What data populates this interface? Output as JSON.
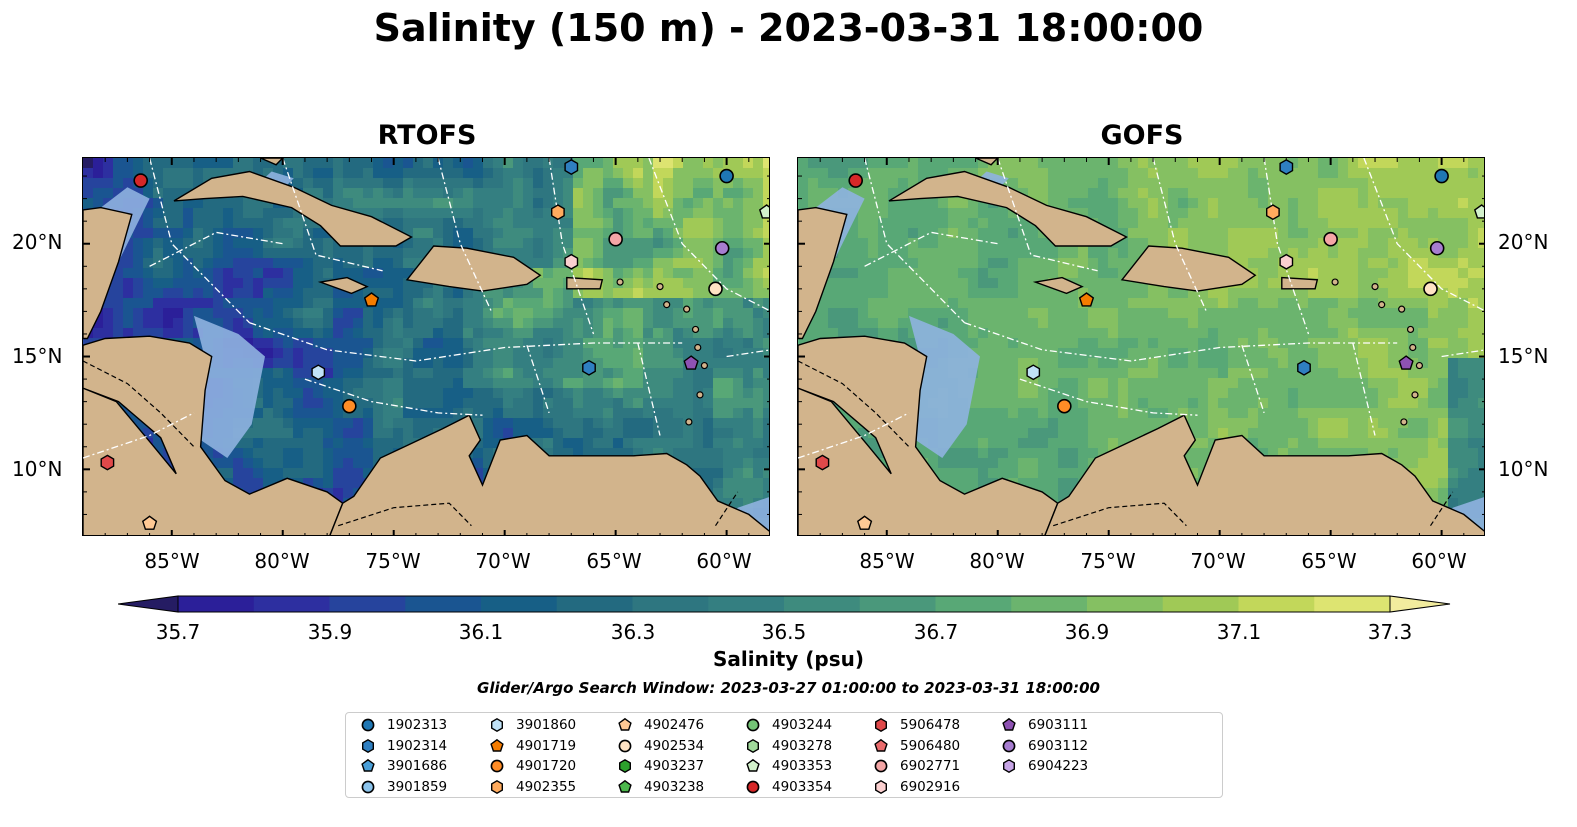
{
  "title": "Salinity (150 m) - 2023-03-31 18:00:00",
  "panels": [
    {
      "title": "RTOFS",
      "palette": "low"
    },
    {
      "title": "GOFS",
      "palette": "high"
    }
  ],
  "lat_ticks": [
    "20°N",
    "15°N",
    "10°N"
  ],
  "lon_ticks": [
    "85°W",
    "80°W",
    "75°W",
    "70°W",
    "65°W",
    "60°W"
  ],
  "colorbar": {
    "label": "Salinity (psu)",
    "min": 35.6,
    "max": 37.4,
    "ticks": [
      "35.7",
      "35.9",
      "36.1",
      "36.3",
      "36.5",
      "36.7",
      "36.9",
      "37.1",
      "37.3"
    ],
    "colors": [
      "#251c63",
      "#2b1f99",
      "#2d2fa0",
      "#26449d",
      "#1a5591",
      "#175f86",
      "#236a80",
      "#2e7680",
      "#347f81",
      "#3e8b7e",
      "#4a987b",
      "#58a876",
      "#6bb46e",
      "#85c062",
      "#a0c956",
      "#c2d75a",
      "#dde471",
      "#f2ec9e"
    ]
  },
  "search_window": "Glider/Argo Search Window: 2023-03-27 01:00:00 to 2023-03-31 18:00:00",
  "legend": [
    {
      "id": "1902313",
      "shape": "circle",
      "color": "#1f77b4"
    },
    {
      "id": "1902314",
      "shape": "hexagon",
      "color": "#2f7fc1"
    },
    {
      "id": "3901686",
      "shape": "pentagon",
      "color": "#4a9fd8"
    },
    {
      "id": "3901859",
      "shape": "circle",
      "color": "#8cc4ec"
    },
    {
      "id": "3901860",
      "shape": "hexagon",
      "color": "#c0e2f7"
    },
    {
      "id": "4901719",
      "shape": "pentagon",
      "color": "#f57c00"
    },
    {
      "id": "4901720",
      "shape": "circle",
      "color": "#ff8c26"
    },
    {
      "id": "4902355",
      "shape": "hexagon",
      "color": "#ffab5e"
    },
    {
      "id": "4902476",
      "shape": "pentagon",
      "color": "#ffc994"
    },
    {
      "id": "4902534",
      "shape": "circle",
      "color": "#ffe3c4"
    },
    {
      "id": "4903237",
      "shape": "hexagon",
      "color": "#2ca02c"
    },
    {
      "id": "4903238",
      "shape": "pentagon",
      "color": "#4cb84c"
    },
    {
      "id": "4903244",
      "shape": "circle",
      "color": "#74c476"
    },
    {
      "id": "4903278",
      "shape": "hexagon",
      "color": "#a1d99b"
    },
    {
      "id": "4903353",
      "shape": "pentagon",
      "color": "#d4f2cc"
    },
    {
      "id": "4903354",
      "shape": "circle",
      "color": "#d62728"
    },
    {
      "id": "5906478",
      "shape": "hexagon",
      "color": "#e0494a"
    },
    {
      "id": "5906480",
      "shape": "pentagon",
      "color": "#ea6b6c"
    },
    {
      "id": "6902771",
      "shape": "circle",
      "color": "#f4a6a6"
    },
    {
      "id": "6902916",
      "shape": "hexagon",
      "color": "#fbd0d0"
    },
    {
      "id": "6903111",
      "shape": "pentagon",
      "color": "#8e52b3"
    },
    {
      "id": "6903112",
      "shape": "circle",
      "color": "#a77dd0"
    },
    {
      "id": "6904223",
      "shape": "hexagon",
      "color": "#c7a5e6"
    }
  ],
  "floats": [
    {
      "id": "4903354",
      "lon": -86.4,
      "lat": 22.8
    },
    {
      "id": "5906478",
      "lon": -87.9,
      "lat": 10.3
    },
    {
      "id": "4902476",
      "lon": -86.0,
      "lat": 7.6
    },
    {
      "id": "3901860",
      "lon": -78.4,
      "lat": 14.3
    },
    {
      "id": "4901720",
      "lon": -77.0,
      "lat": 12.8
    },
    {
      "id": "4901719",
      "lon": -76.0,
      "lat": 17.5
    },
    {
      "id": "1902314",
      "lon": -67.0,
      "lat": 23.4
    },
    {
      "id": "4902355",
      "lon": -67.6,
      "lat": 21.4
    },
    {
      "id": "6902771",
      "lon": -65.0,
      "lat": 20.2
    },
    {
      "id": "6902916",
      "lon": -67.0,
      "lat": 19.2
    },
    {
      "id": "1902313",
      "lon": -60.0,
      "lat": 23.0
    },
    {
      "id": "4903353",
      "lon": -58.2,
      "lat": 21.4
    },
    {
      "id": "6903112",
      "lon": -60.2,
      "lat": 19.8
    },
    {
      "id": "4902534",
      "lon": -60.5,
      "lat": 18.0
    },
    {
      "id": "1902314",
      "lon": -66.2,
      "lat": 14.5
    },
    {
      "id": "6903111",
      "lon": -61.6,
      "lat": 14.7
    }
  ]
}
